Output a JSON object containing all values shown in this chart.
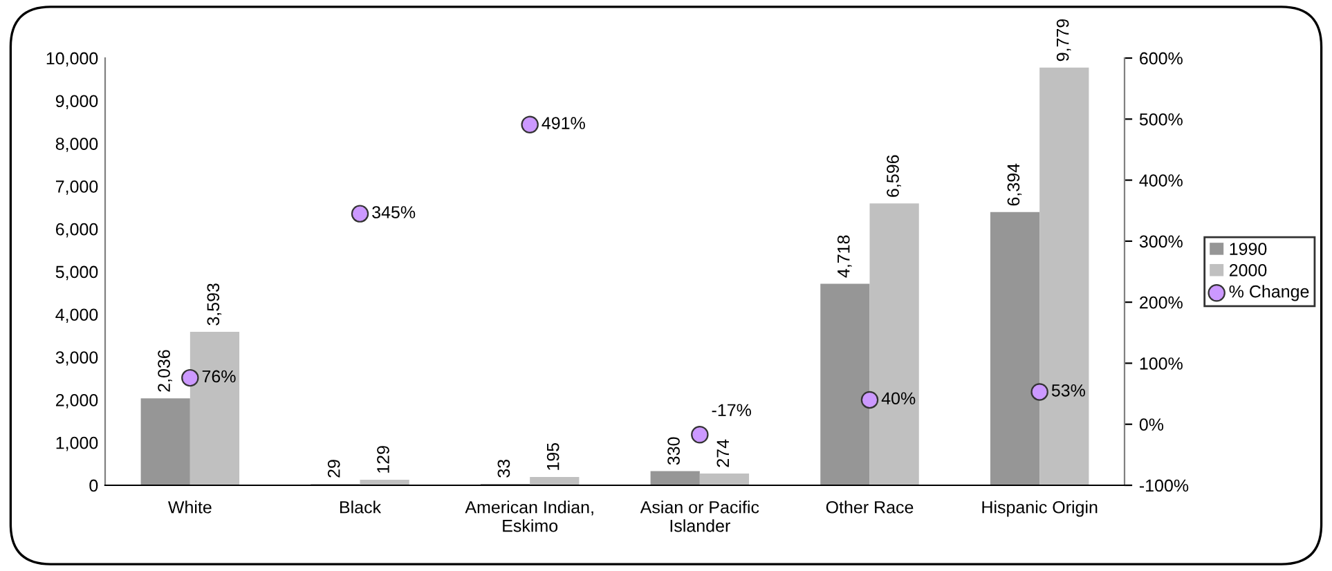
{
  "chart_data": {
    "type": "bar",
    "categories": [
      "White",
      "Black",
      "American Indian,\nEskimo",
      "Asian or Pacific\nIslander",
      "Other Race",
      "Hispanic Origin"
    ],
    "series": [
      {
        "name": "1990",
        "color": "#969696",
        "values": [
          2036,
          29,
          33,
          330,
          4718,
          6394
        ],
        "value_labels": [
          "2,036",
          "29",
          "33",
          "330",
          "4,718",
          "6,394"
        ]
      },
      {
        "name": "2000",
        "color": "#c0c0c0",
        "values": [
          3593,
          129,
          195,
          274,
          6596,
          9779
        ],
        "value_labels": [
          "3,593",
          "129",
          "195",
          "274",
          "6,596",
          "9,779"
        ]
      },
      {
        "name": "% Change",
        "type": "scatter",
        "axis": "y2",
        "color": "#cc99ff",
        "marker": "circle",
        "values": [
          76,
          345,
          491,
          -17,
          40,
          53
        ],
        "value_labels": [
          "76%",
          "345%",
          "491%",
          "-17%",
          "40%",
          "53%"
        ]
      }
    ],
    "ylim": [
      0,
      10000
    ],
    "yticks": [
      {
        "value": 0,
        "label": "0"
      },
      {
        "value": 1000,
        "label": "1,000"
      },
      {
        "value": 2000,
        "label": "2,000"
      },
      {
        "value": 3000,
        "label": "3,000"
      },
      {
        "value": 4000,
        "label": "4,000"
      },
      {
        "value": 5000,
        "label": "5,000"
      },
      {
        "value": 6000,
        "label": "6,000"
      },
      {
        "value": 7000,
        "label": "7,000"
      },
      {
        "value": 8000,
        "label": "8,000"
      },
      {
        "value": 9000,
        "label": "9,000"
      },
      {
        "value": 10000,
        "label": "10,000"
      }
    ],
    "y2lim": [
      -100,
      600
    ],
    "y2ticks": [
      {
        "value": -100,
        "label": "-100%"
      },
      {
        "value": 0,
        "label": "0%"
      },
      {
        "value": 100,
        "label": "100%"
      },
      {
        "value": 200,
        "label": "200%"
      },
      {
        "value": 300,
        "label": "300%"
      },
      {
        "value": 400,
        "label": "400%"
      },
      {
        "value": 500,
        "label": "500%"
      },
      {
        "value": 600,
        "label": "600%"
      }
    ],
    "grid": false,
    "legend": "right"
  }
}
